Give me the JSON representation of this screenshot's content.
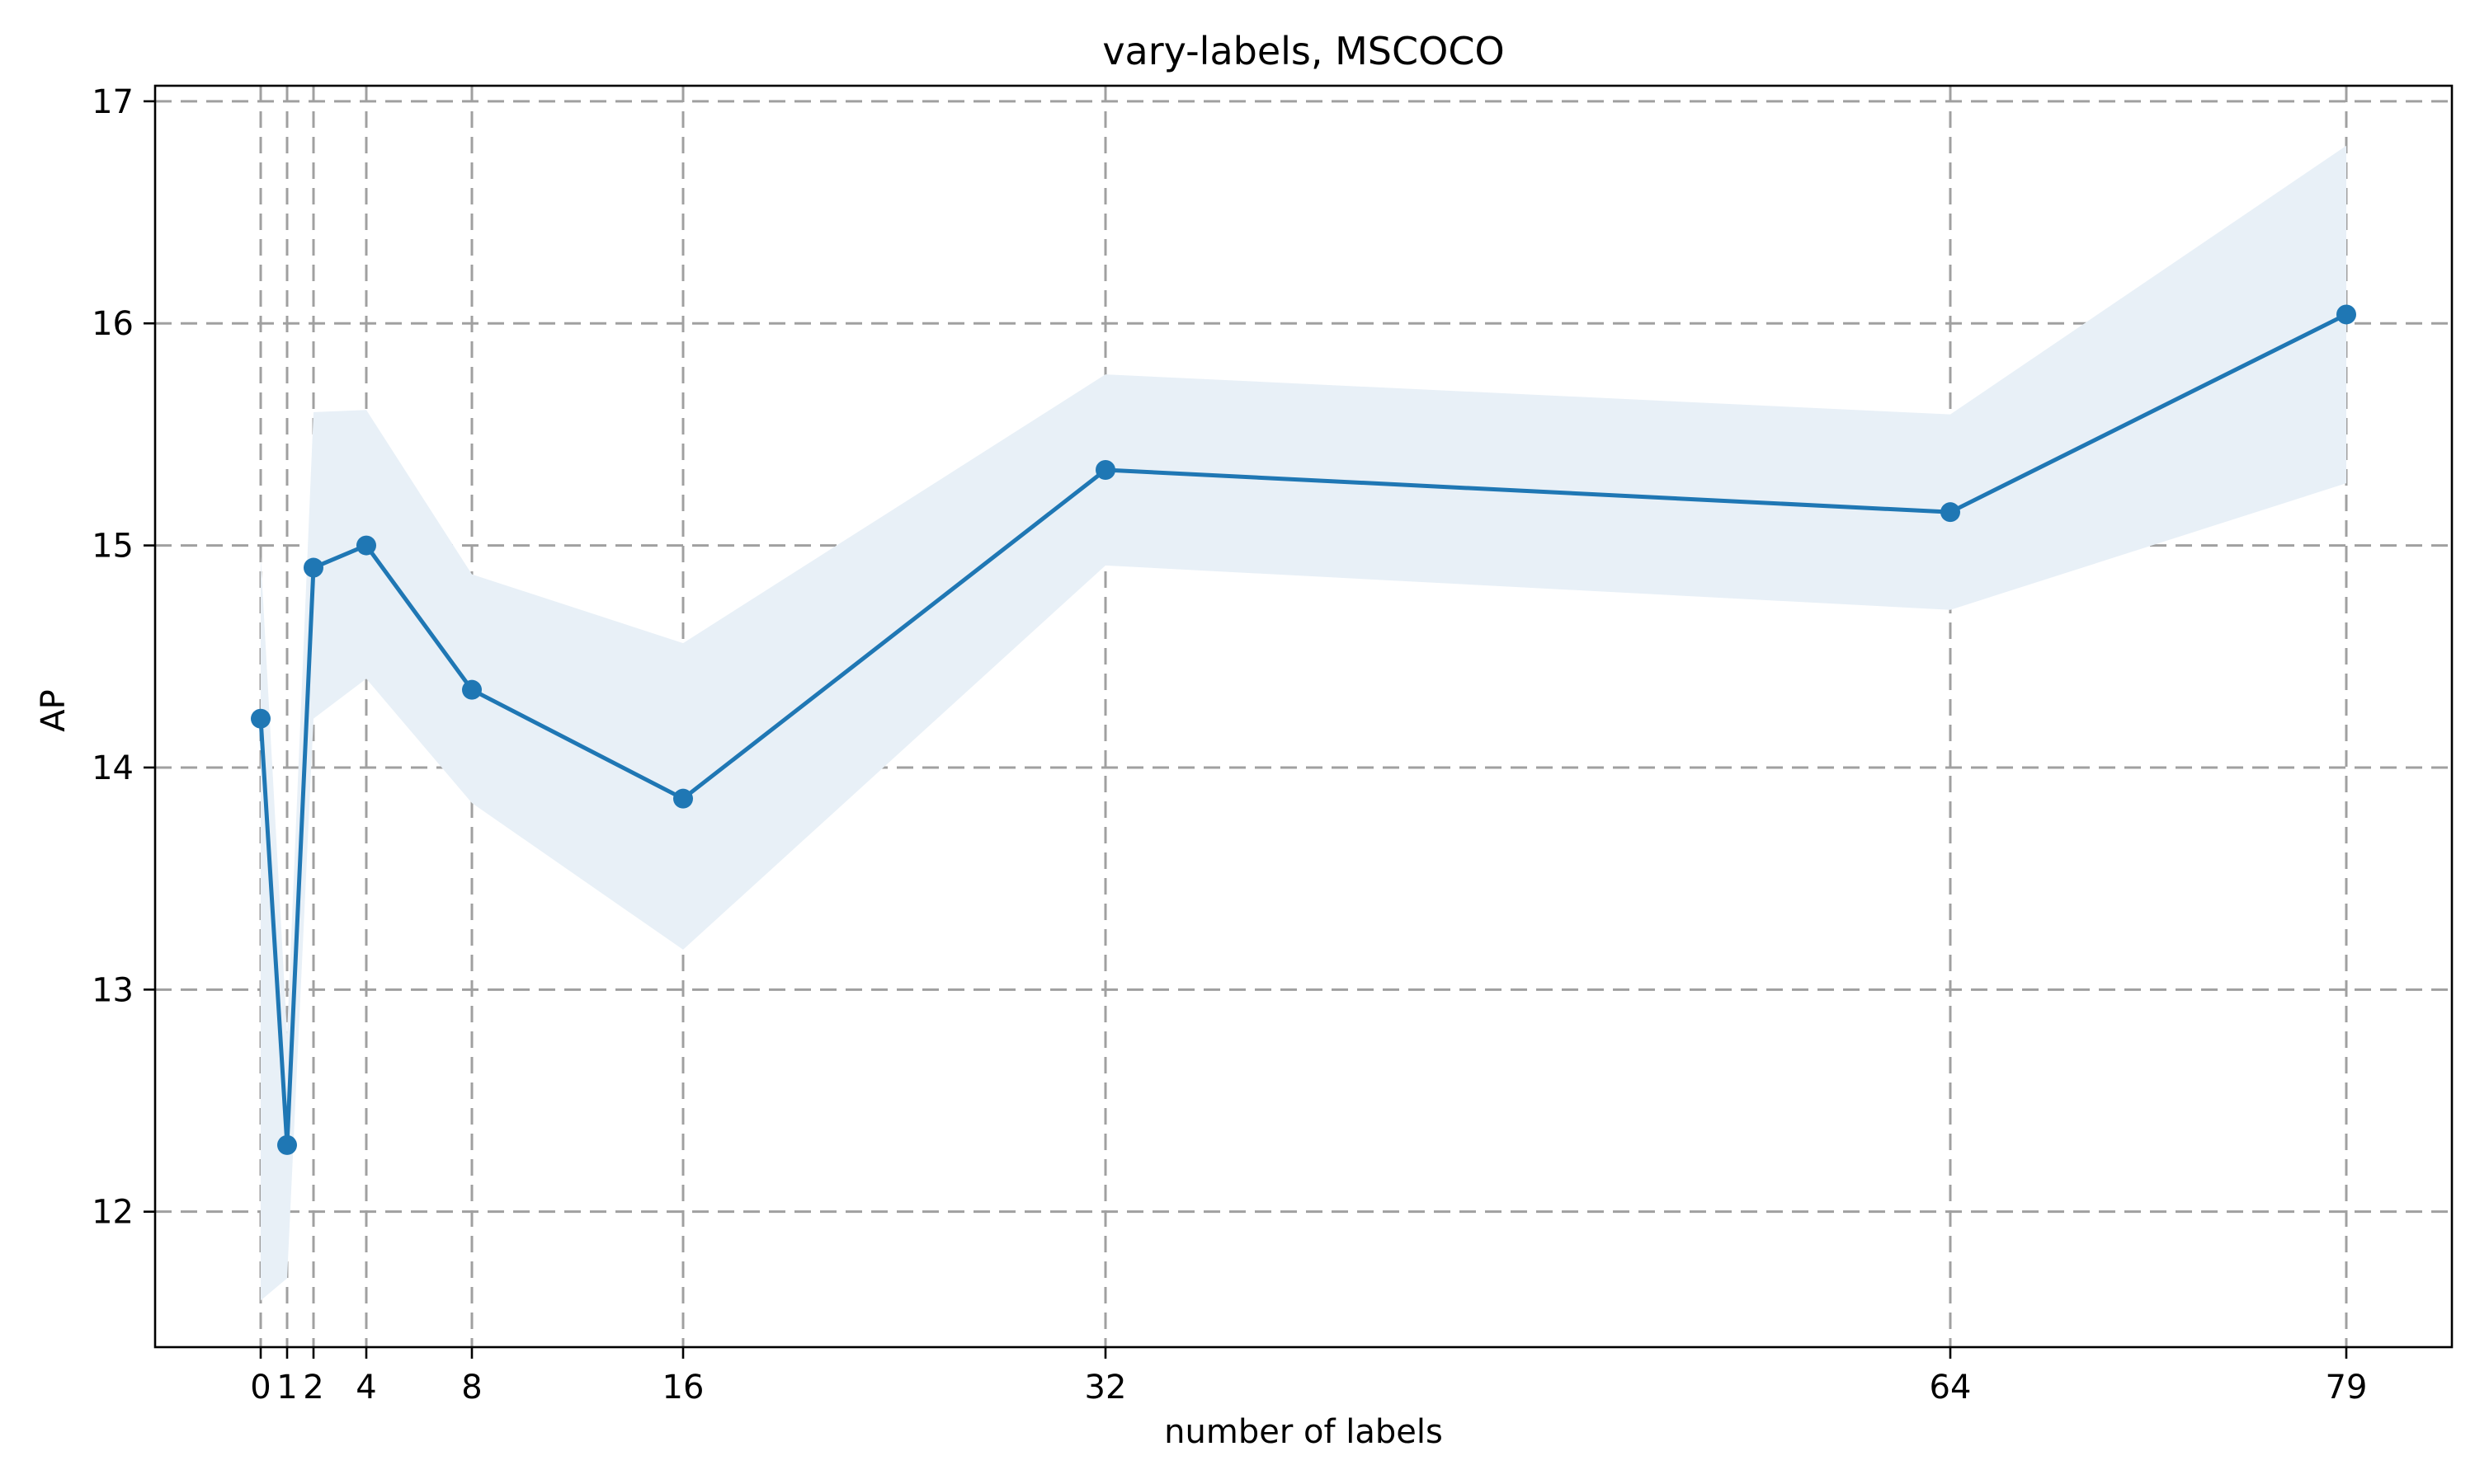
{
  "chart_data": {
    "type": "line",
    "title": "vary-labels, MSCOCO",
    "xlabel": "number of labels",
    "ylabel": "AP",
    "x": [
      0,
      1,
      2,
      4,
      8,
      16,
      32,
      64,
      79
    ],
    "series": [
      {
        "values": [
          14.22,
          12.3,
          14.9,
          15.0,
          14.35,
          13.86,
          15.34,
          15.15,
          16.04
        ],
        "lower": [
          11.6,
          11.7,
          14.22,
          14.4,
          13.84,
          13.18,
          14.91,
          14.71,
          15.28
        ],
        "upper": [
          14.95,
          12.8,
          15.6,
          15.61,
          14.87,
          14.56,
          15.77,
          15.59,
          16.8
        ],
        "color": "#1f77b4",
        "band_color": "#e8f0f7"
      }
    ],
    "xticks": [
      0,
      1,
      2,
      4,
      8,
      16,
      32,
      64,
      79
    ],
    "xtick_labels": [
      "0",
      "1",
      "2",
      "4",
      "8",
      "16",
      "32",
      "64",
      "79"
    ],
    "yticks": [
      12,
      13,
      14,
      15,
      16,
      17
    ],
    "ytick_labels": [
      "12",
      "13",
      "14",
      "15",
      "16",
      "17"
    ],
    "xlim": [
      -4,
      83
    ],
    "ylim": [
      11.39,
      17.07
    ],
    "grid": true,
    "legend": false
  }
}
